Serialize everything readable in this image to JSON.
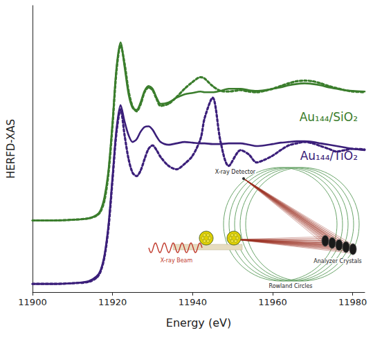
{
  "chart_data": {
    "type": "line",
    "x_label": "Energy (eV)",
    "y_label": "HERFD-XAS",
    "xlim": [
      11900,
      11983
    ],
    "xticks": [
      11900,
      11920,
      11940,
      11960,
      11980
    ],
    "ylim": [
      0,
      42
    ],
    "tick_labels": "x",
    "grid": false,
    "x": [
      11900,
      11905,
      11910,
      11914,
      11916,
      11917,
      11918,
      11919,
      11920,
      11921,
      11922,
      11923,
      11924,
      11925,
      11926,
      11927,
      11928,
      11929,
      11930,
      11931,
      11932,
      11934,
      11936,
      11938,
      11940,
      11942,
      11943,
      11945,
      11947,
      11949,
      11952,
      11954,
      11956,
      11958,
      11960,
      11962,
      11964,
      11966,
      11968,
      11970,
      11972,
      11974,
      11976,
      11978,
      11980,
      11983
    ],
    "series": [
      {
        "name": "Au₁₄₄/SiO₂",
        "color": "#3a7d2c",
        "line_style": "solid",
        "values": [
          10.5,
          10.5,
          10.6,
          10.8,
          11.3,
          12,
          14,
          18,
          25,
          33,
          36.6,
          33,
          29,
          27,
          26.7,
          27.8,
          29.5,
          30.2,
          29.8,
          28.5,
          27.6,
          27.8,
          28.5,
          29,
          29.2,
          29.4,
          29.3,
          29.3,
          29.5,
          29.8,
          29.8,
          29.6,
          29.5,
          29.6,
          29.8,
          30.0,
          30.3,
          30.5,
          30.6,
          30.5,
          30.3,
          30.0,
          29.8,
          29.6,
          29.5,
          29.4
        ]
      },
      {
        "color": "#3a7d2c",
        "line_style": "dotted",
        "values": [
          10.5,
          10.5,
          10.6,
          10.8,
          11.2,
          11.8,
          13.5,
          17.5,
          24.5,
          32.5,
          36.2,
          33.5,
          29.5,
          27.2,
          26.5,
          27.5,
          29.3,
          30.0,
          29.6,
          28.3,
          27.3,
          27.6,
          28.6,
          29.8,
          30.8,
          31.5,
          31.3,
          30.2,
          29.5,
          29.4,
          29.6,
          29.4,
          29.3,
          29.5,
          29.8,
          30.2,
          30.6,
          30.9,
          31.0,
          30.9,
          30.6,
          30.2,
          29.9,
          29.6,
          29.4,
          29.3
        ]
      },
      {
        "name": "Au₁₄₄/TiO₂",
        "color": "#3b1f7a",
        "line_style": "solid",
        "values": [
          1.2,
          1.2,
          1.3,
          1.6,
          2.3,
          3.2,
          5.5,
          10,
          17,
          24,
          27.4,
          25,
          23,
          22,
          22.4,
          23.5,
          24.2,
          24.3,
          23.8,
          22.8,
          22.0,
          21.6,
          21.8,
          22.0,
          21.9,
          21.8,
          21.8,
          21.7,
          21.7,
          21.8,
          21.8,
          21.6,
          21.4,
          21.5,
          21.7,
          21.9,
          22.0,
          22.1,
          22.1,
          22.0,
          21.8,
          21.6,
          21.4,
          21.2,
          21.0,
          20.8
        ]
      },
      {
        "color": "#3b1f7a",
        "line_style": "dotted",
        "values": [
          1.2,
          1.2,
          1.3,
          1.5,
          2.1,
          3.0,
          5.2,
          9.5,
          16.5,
          23.5,
          26.8,
          23,
          19.5,
          17.5,
          17.0,
          17.8,
          19.5,
          21.0,
          21.5,
          20.8,
          19.8,
          18.5,
          18.0,
          18.8,
          20.0,
          22.5,
          25.5,
          28.5,
          22.0,
          18.5,
          20.8,
          20.2,
          19.0,
          19.4,
          20.0,
          20.8,
          21.5,
          21.8,
          22.0,
          21.8,
          21.4,
          21.0,
          20.6,
          20.8,
          21.0,
          20.9
        ]
      }
    ],
    "annotations": [
      "X-ray Detector",
      "X-ray Beam",
      "Analyzer Crystals",
      "Rowland Circles"
    ]
  }
}
